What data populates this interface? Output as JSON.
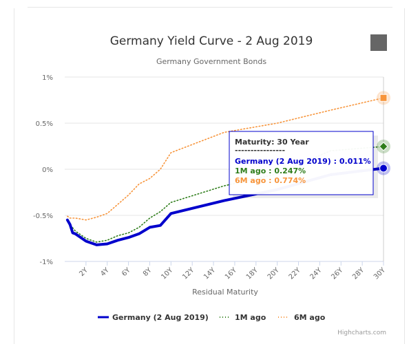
{
  "chart_data": {
    "type": "line",
    "title": "Germany Yield Curve - 2 Aug 2019",
    "subtitle": "Germany Government Bonds",
    "xlabel": "Residual Maturity",
    "ylabel": "",
    "x_ticks": [
      "2Y",
      "4Y",
      "6Y",
      "8Y",
      "10Y",
      "12Y",
      "14Y",
      "16Y",
      "18Y",
      "20Y",
      "22Y",
      "24Y",
      "26Y",
      "28Y",
      "30Y"
    ],
    "y_ticks": [
      {
        "value": 1,
        "label": "1%"
      },
      {
        "value": 0.5,
        "label": "0.5%"
      },
      {
        "value": 0,
        "label": "0%"
      },
      {
        "value": -0.5,
        "label": "-0.5%"
      },
      {
        "value": -1,
        "label": "-1%"
      }
    ],
    "xlim": [
      0,
      30
    ],
    "ylim": [
      -1,
      1
    ],
    "series": [
      {
        "name": "Germany (2 Aug 2019)",
        "color": "#0000cc",
        "dash": "solid",
        "points": [
          [
            0.25,
            -0.55
          ],
          [
            0.5,
            -0.6
          ],
          [
            0.75,
            -0.69
          ],
          [
            1,
            -0.7
          ],
          [
            2,
            -0.78
          ],
          [
            3,
            -0.82
          ],
          [
            4,
            -0.81
          ],
          [
            5,
            -0.77
          ],
          [
            6,
            -0.74
          ],
          [
            7,
            -0.7
          ],
          [
            8,
            -0.63
          ],
          [
            9,
            -0.61
          ],
          [
            10,
            -0.48
          ],
          [
            15,
            -0.34
          ],
          [
            20,
            -0.22
          ],
          [
            25,
            -0.06
          ],
          [
            30,
            0.011
          ]
        ]
      },
      {
        "name": "1M ago",
        "color": "#2e7d1a",
        "dash": "dotted",
        "points": [
          [
            0.25,
            -0.55
          ],
          [
            0.5,
            -0.6
          ],
          [
            1,
            -0.67
          ],
          [
            2,
            -0.75
          ],
          [
            3,
            -0.79
          ],
          [
            4,
            -0.77
          ],
          [
            5,
            -0.72
          ],
          [
            6,
            -0.69
          ],
          [
            7,
            -0.63
          ],
          [
            8,
            -0.53
          ],
          [
            9,
            -0.46
          ],
          [
            10,
            -0.36
          ],
          [
            15,
            -0.18
          ],
          [
            20,
            -0.05
          ],
          [
            25,
            0.2
          ],
          [
            30,
            0.247
          ]
        ]
      },
      {
        "name": "6M ago",
        "color": "#f7943a",
        "dash": "dotted",
        "points": [
          [
            0.25,
            -0.51
          ],
          [
            0.5,
            -0.53
          ],
          [
            1,
            -0.53
          ],
          [
            2,
            -0.55
          ],
          [
            3,
            -0.52
          ],
          [
            4,
            -0.48
          ],
          [
            5,
            -0.38
          ],
          [
            6,
            -0.28
          ],
          [
            7,
            -0.16
          ],
          [
            8,
            -0.1
          ],
          [
            9,
            0.0
          ],
          [
            10,
            0.18
          ],
          [
            15,
            0.4
          ],
          [
            20,
            0.5
          ],
          [
            25,
            0.64
          ],
          [
            30,
            0.774
          ]
        ]
      }
    ],
    "legend_position": "bottom",
    "tooltip": {
      "title": "Maturity: 30 Year",
      "separator": "----------------",
      "lines": [
        {
          "text": "Germany (2 Aug 2019) : 0.011%",
          "color": "#0000cc"
        },
        {
          "text": "1M ago : 0.247%",
          "color": "#2e7d1a"
        },
        {
          "text": "6M ago : 0.774%",
          "color": "#f7943a"
        }
      ]
    },
    "credits": "Highcharts.com"
  }
}
